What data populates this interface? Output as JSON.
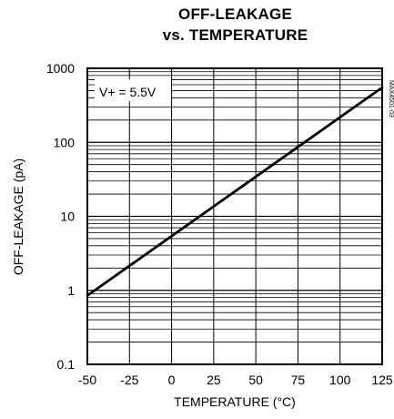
{
  "chart_data": {
    "type": "line",
    "title_lines": [
      "OFF-LEAKAGE",
      "vs. TEMPERATURE"
    ],
    "xlabel": "TEMPERATURE (°C)",
    "ylabel": "OFF-LEAKAGE (pA)",
    "y_scale": "log",
    "xlim": [
      -50,
      125
    ],
    "ylim": [
      0.1,
      1000
    ],
    "x_ticks": [
      -50,
      -25,
      0,
      25,
      50,
      75,
      100,
      125
    ],
    "y_ticks": [
      0.1,
      1,
      10,
      100,
      1000
    ],
    "y_tick_labels": [
      "0.1",
      "1",
      "10",
      "100",
      "1000"
    ],
    "grid": true,
    "annotation": "V+ = 5.5V",
    "figure_id": "MAX4501-03",
    "series": [
      {
        "x": [
          -50,
          125
        ],
        "y": [
          0.85,
          550
        ],
        "color": "#000000"
      }
    ]
  }
}
